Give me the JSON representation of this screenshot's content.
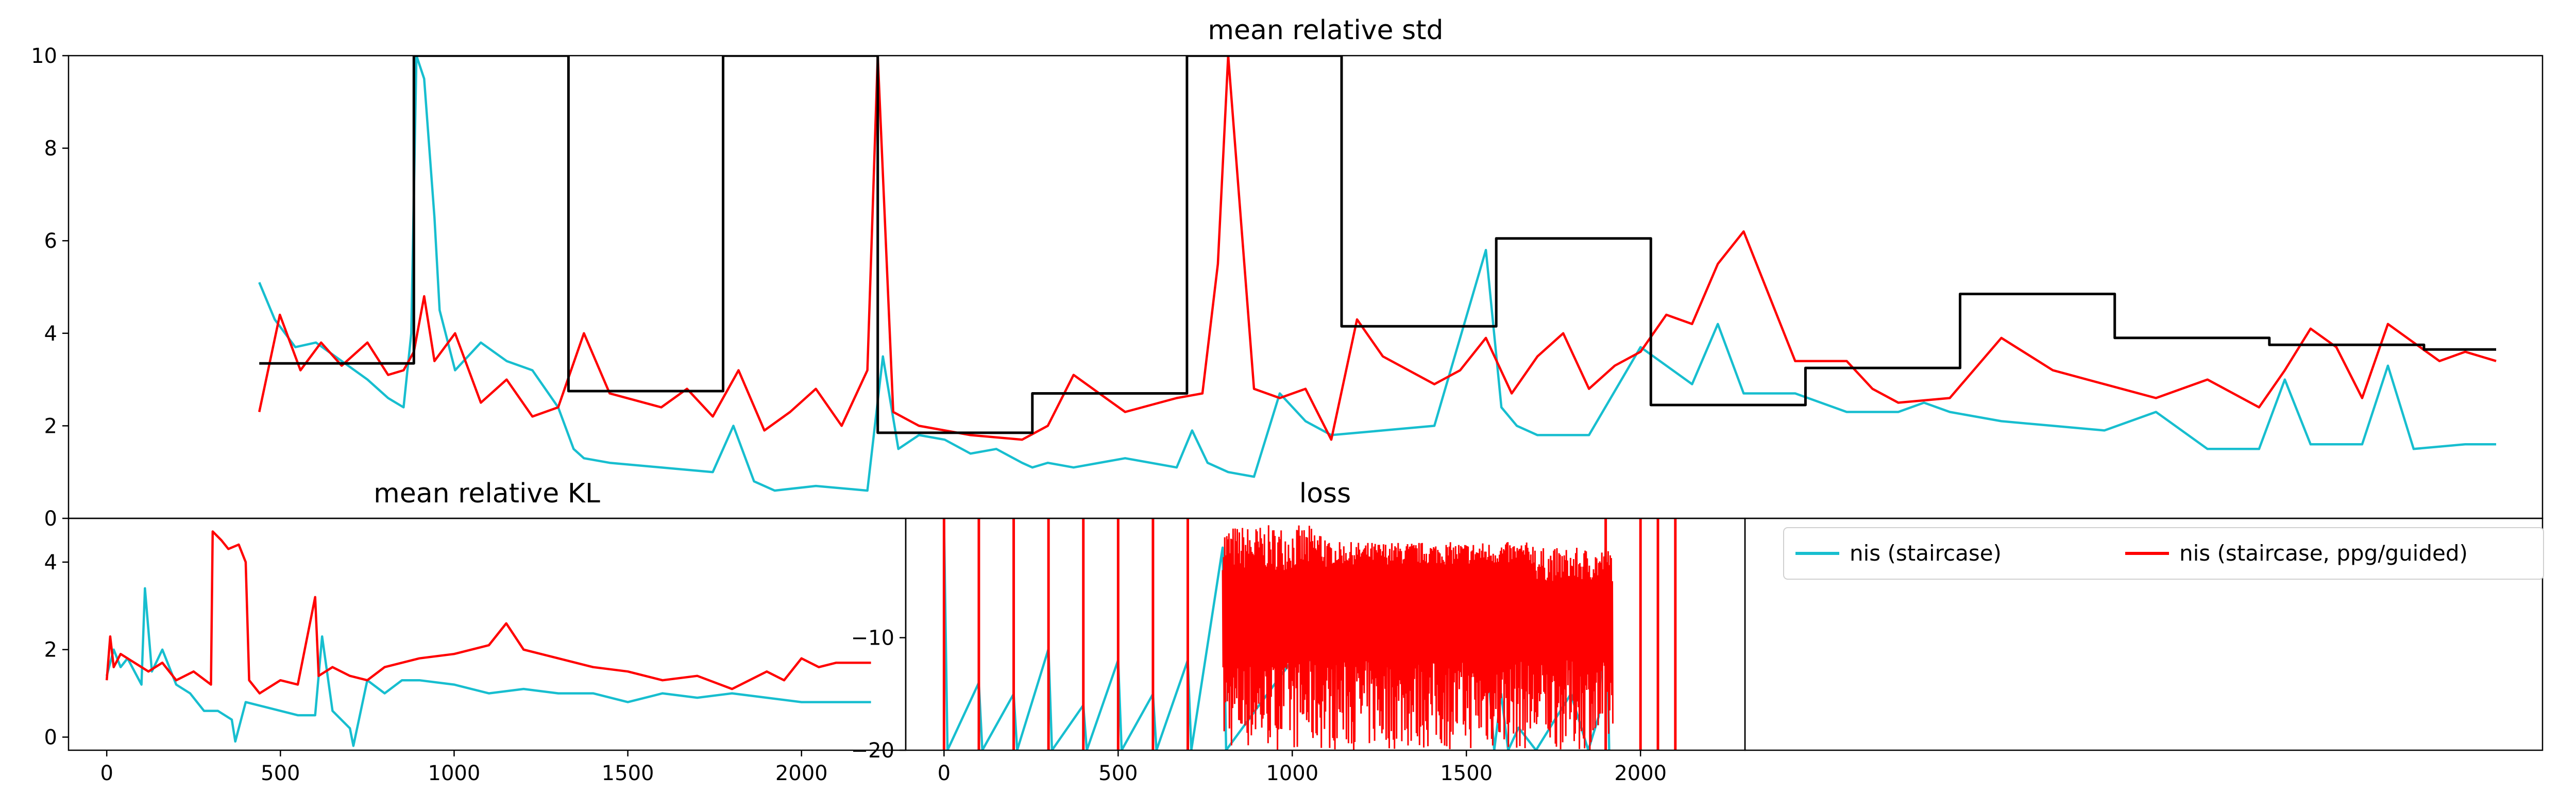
{
  "chart_data": [
    {
      "type": "line",
      "title": "mean relative std",
      "xlim": [
        -150,
        4650
      ],
      "ylim": [
        0,
        10
      ],
      "xticks": [],
      "yticks": [
        "0",
        "2",
        "4",
        "6",
        "8",
        "10"
      ],
      "series": [
        {
          "name": "nis (staircase)",
          "color": "#17becf",
          "x": [
            220,
            250,
            290,
            330,
            380,
            430,
            470,
            500,
            515,
            525,
            540,
            560,
            570,
            600,
            650,
            700,
            750,
            800,
            830,
            850,
            900,
            1000,
            1100,
            1140,
            1180,
            1220,
            1300,
            1400,
            1430,
            1460,
            1500,
            1550,
            1600,
            1650,
            1700,
            1720,
            1750,
            1800,
            1900,
            2000,
            2030,
            2060,
            2100,
            2150,
            2200,
            2250,
            2300,
            2400,
            2500,
            2600,
            2630,
            2660,
            2700,
            2800,
            2900,
            3000,
            3050,
            3100,
            3200,
            3300,
            3400,
            3450,
            3500,
            3600,
            3700,
            3800,
            3900,
            4000,
            4100,
            4150,
            4200,
            4300,
            4350,
            4400,
            4500,
            4560
          ],
          "y": [
            5.1,
            4.3,
            3.7,
            3.8,
            3.4,
            3.0,
            2.6,
            2.4,
            4.0,
            10.0,
            9.5,
            6.5,
            4.5,
            3.2,
            3.8,
            3.4,
            3.2,
            2.4,
            1.5,
            1.3,
            1.2,
            1.1,
            1.0,
            2.0,
            0.8,
            0.6,
            0.7,
            0.6,
            3.5,
            1.5,
            1.8,
            1.7,
            1.4,
            1.5,
            1.2,
            1.1,
            1.2,
            1.1,
            1.3,
            1.1,
            1.9,
            1.2,
            1.0,
            0.9,
            2.7,
            2.1,
            1.8,
            1.9,
            2.0,
            5.8,
            2.4,
            2.0,
            1.8,
            1.8,
            3.7,
            2.9,
            4.2,
            2.7,
            2.7,
            2.3,
            2.3,
            2.5,
            2.3,
            2.1,
            2.0,
            1.9,
            2.3,
            1.5,
            1.5,
            3.0,
            1.6,
            1.6,
            3.3,
            1.5,
            1.6,
            1.6
          ]
        },
        {
          "name": "nis (staircase, ppg/guided)",
          "color": "#ff0000",
          "x": [
            220,
            260,
            300,
            340,
            380,
            430,
            470,
            500,
            520,
            540,
            560,
            600,
            650,
            700,
            750,
            800,
            850,
            900,
            1000,
            1050,
            1100,
            1150,
            1200,
            1250,
            1300,
            1350,
            1400,
            1420,
            1450,
            1500,
            1600,
            1700,
            1750,
            1800,
            1900,
            2000,
            2050,
            2080,
            2100,
            2150,
            2200,
            2250,
            2300,
            2350,
            2400,
            2500,
            2550,
            2600,
            2650,
            2700,
            2750,
            2800,
            2850,
            2900,
            2950,
            3000,
            3050,
            3100,
            3200,
            3300,
            3350,
            3400,
            3500,
            3600,
            3700,
            3800,
            3900,
            4000,
            4100,
            4150,
            4200,
            4250,
            4300,
            4350,
            4400,
            4450,
            4500,
            4560
          ],
          "y": [
            2.3,
            4.4,
            3.2,
            3.8,
            3.3,
            3.8,
            3.1,
            3.2,
            3.6,
            4.8,
            3.4,
            4.0,
            2.5,
            3.0,
            2.2,
            2.4,
            4.0,
            2.7,
            2.4,
            2.8,
            2.2,
            3.2,
            1.9,
            2.3,
            2.8,
            2.0,
            3.2,
            10.0,
            2.3,
            2.0,
            1.8,
            1.7,
            2.0,
            3.1,
            2.3,
            2.6,
            2.7,
            5.5,
            10.0,
            2.8,
            2.6,
            2.8,
            1.7,
            4.3,
            3.5,
            2.9,
            3.2,
            3.9,
            2.7,
            3.5,
            4.0,
            2.8,
            3.3,
            3.6,
            4.4,
            4.2,
            5.5,
            6.2,
            3.4,
            3.4,
            2.8,
            2.5,
            2.6,
            3.9,
            3.2,
            2.9,
            2.6,
            3.0,
            2.4,
            3.2,
            4.1,
            3.7,
            2.6,
            4.2,
            3.8,
            3.4,
            3.6,
            3.4
          ]
        },
        {
          "name": "",
          "color": "#000000",
          "style": "steps",
          "x": [
            220,
            520,
            520,
            820,
            820,
            1120,
            1120,
            1420,
            1420,
            1720,
            1720,
            2020,
            2020,
            2320,
            2320,
            2620,
            2620,
            2920,
            2920,
            3220,
            3220,
            3520,
            3520,
            3820,
            3820,
            4120,
            4120,
            4420,
            4420,
            4560
          ],
          "y": [
            3.35,
            3.35,
            10,
            10,
            2.75,
            2.75,
            10,
            10,
            1.85,
            1.85,
            2.7,
            2.7,
            10,
            10,
            4.15,
            4.15,
            6.05,
            6.05,
            2.45,
            2.45,
            3.25,
            3.25,
            4.85,
            4.85,
            3.9,
            3.9,
            3.75,
            3.75,
            3.65,
            3.65
          ]
        }
      ]
    },
    {
      "type": "line",
      "title": "mean relative KL",
      "xlim": [
        -110,
        2300
      ],
      "ylim": [
        -0.3,
        5.0
      ],
      "xticks": [
        "0",
        "500",
        "1000",
        "1500",
        "2000"
      ],
      "xtick_values": [
        0,
        500,
        1000,
        1500,
        2000
      ],
      "yticks": [
        "0",
        "2",
        "4"
      ],
      "series": [
        {
          "name": "nis (staircase)",
          "color": "#17becf",
          "x": [
            0,
            20,
            40,
            60,
            100,
            110,
            130,
            160,
            200,
            240,
            280,
            320,
            360,
            370,
            400,
            450,
            500,
            550,
            600,
            620,
            650,
            700,
            710,
            750,
            800,
            850,
            900,
            1000,
            1100,
            1200,
            1300,
            1400,
            1500,
            1600,
            1700,
            1800,
            1900,
            2000,
            2100,
            2200
          ],
          "y": [
            1.4,
            2.0,
            1.6,
            1.8,
            1.2,
            3.4,
            1.5,
            2.0,
            1.2,
            1.0,
            0.6,
            0.6,
            0.4,
            -0.1,
            0.8,
            0.7,
            0.6,
            0.5,
            0.5,
            2.3,
            0.6,
            0.2,
            -0.2,
            1.3,
            1.0,
            1.3,
            1.3,
            1.2,
            1.0,
            1.1,
            1.0,
            1.0,
            0.8,
            1.0,
            0.9,
            1.0,
            0.9,
            0.8,
            0.8,
            0.8
          ]
        },
        {
          "name": "nis (staircase, ppg/guided)",
          "color": "#ff0000",
          "x": [
            0,
            10,
            20,
            40,
            80,
            120,
            160,
            200,
            250,
            300,
            305,
            330,
            350,
            380,
            400,
            410,
            440,
            500,
            550,
            600,
            610,
            650,
            700,
            750,
            800,
            850,
            900,
            1000,
            1100,
            1150,
            1200,
            1300,
            1400,
            1500,
            1600,
            1700,
            1800,
            1900,
            1950,
            2000,
            2050,
            2100,
            2200
          ],
          "y": [
            1.3,
            2.3,
            1.6,
            1.9,
            1.7,
            1.5,
            1.7,
            1.3,
            1.5,
            1.2,
            4.7,
            4.5,
            4.3,
            4.4,
            4.0,
            1.3,
            1.0,
            1.3,
            1.2,
            3.2,
            1.4,
            1.6,
            1.4,
            1.3,
            1.6,
            1.7,
            1.8,
            1.9,
            2.1,
            2.6,
            2.0,
            1.8,
            1.6,
            1.5,
            1.3,
            1.4,
            1.1,
            1.5,
            1.3,
            1.8,
            1.6,
            1.7,
            1.7
          ]
        }
      ]
    },
    {
      "type": "line",
      "title": "loss",
      "xlim": [
        -110,
        2300
      ],
      "ylim": [
        -20,
        0.6
      ],
      "xticks": [
        "0",
        "500",
        "1000",
        "1500",
        "2000"
      ],
      "xtick_values": [
        0,
        500,
        1000,
        1500,
        2000
      ],
      "yticks": [
        "−10",
        "−20"
      ],
      "ytick_values": [
        -10,
        -20
      ],
      "series": [
        {
          "name": "nis (staircase)",
          "color": "#17becf",
          "x": [
            0,
            10,
            100,
            110,
            200,
            210,
            300,
            310,
            400,
            410,
            500,
            510,
            600,
            610,
            700,
            710,
            800,
            810,
            1000,
            1200,
            1400,
            1550,
            1580,
            1600,
            1620,
            1650,
            1700,
            1800,
            1850,
            1880,
            1900,
            1910
          ],
          "y": [
            0,
            -20,
            -14,
            -20,
            -15,
            -20,
            -11,
            -20,
            -16,
            -20,
            -12,
            -20,
            -15,
            -20,
            -12,
            -20,
            -2,
            -20,
            -12,
            -12,
            -10,
            -8,
            -20,
            -15,
            -20,
            -18,
            -20,
            -15,
            -20,
            -17,
            -2,
            -20
          ]
        }
      ]
    }
  ],
  "legend": {
    "entries": [
      {
        "label": "nis (staircase)",
        "color": "#17becf"
      },
      {
        "label": "nis (staircase, ppg/guided)",
        "color": "#ff0000"
      }
    ]
  }
}
